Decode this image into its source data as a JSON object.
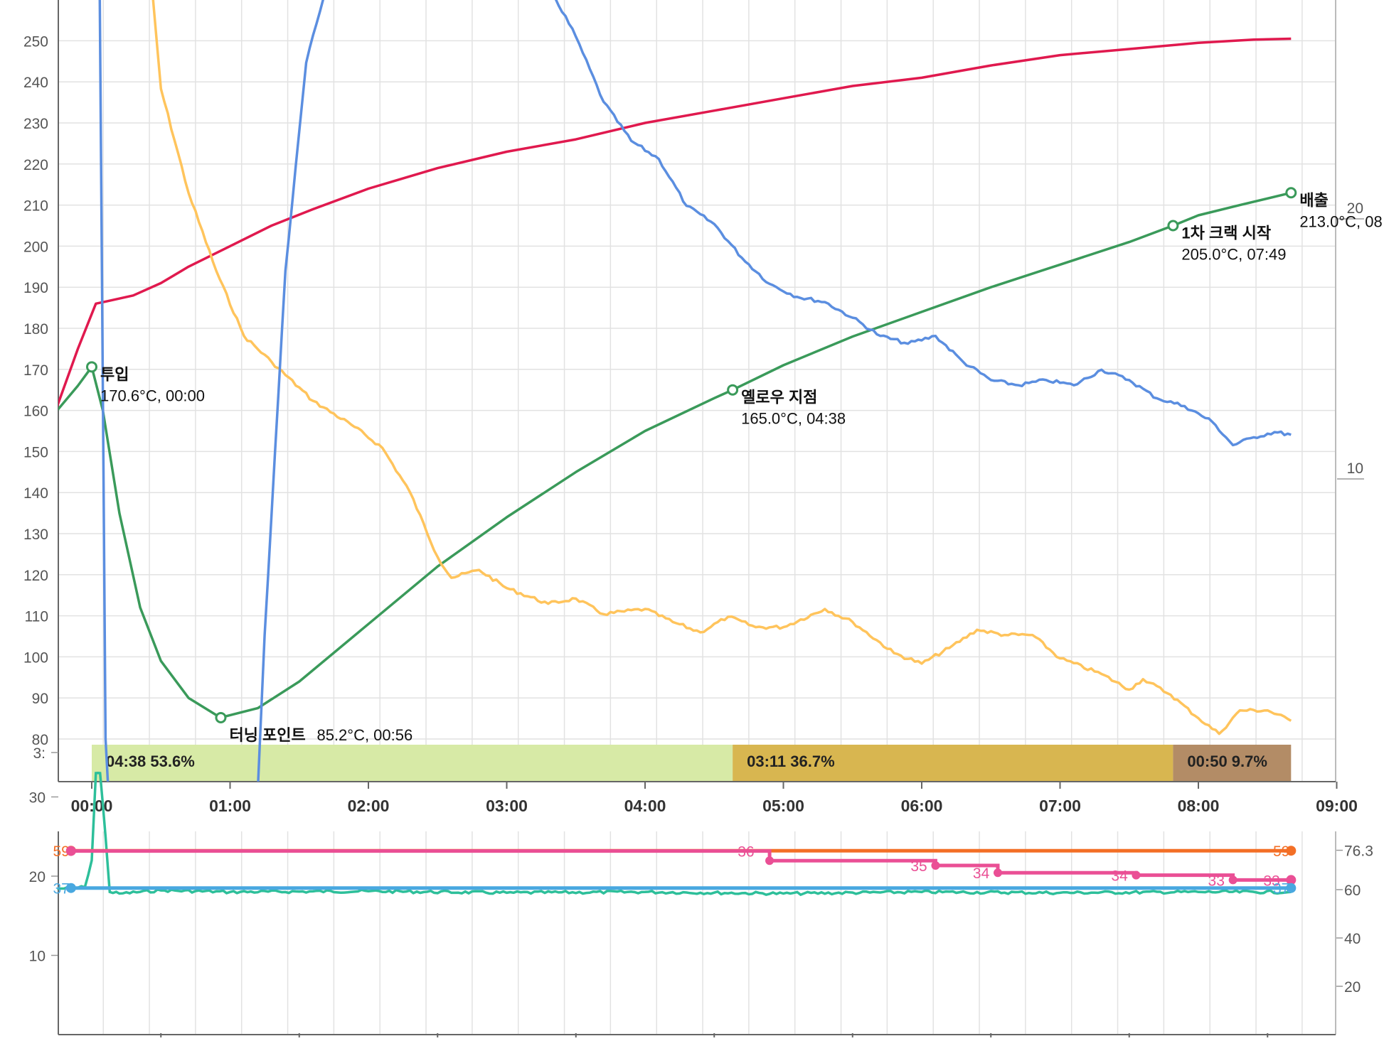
{
  "chart_data": [
    {
      "type": "line",
      "title": "",
      "xlabel": "",
      "ylabel": "",
      "x_ticks": [
        "00:00",
        "01:00",
        "02:00",
        "03:00",
        "04:00",
        "05:00",
        "06:00",
        "07:00",
        "08:00",
        "09:00"
      ],
      "xlim_min": [
        -0.25,
        9.0
      ],
      "y_ticks": [
        80,
        90,
        100,
        110,
        120,
        130,
        140,
        150,
        160,
        170,
        180,
        190,
        200,
        210,
        220,
        230,
        240,
        250
      ],
      "ylim": [
        70,
        260
      ],
      "y2_ticks": [
        {
          "label": "20",
          "value": 20
        },
        {
          "label": "10",
          "value": 10
        }
      ],
      "y2lim": [
        0,
        34
      ],
      "grid": true,
      "colors": {
        "bt": "#3a9a5a",
        "et": "#e0194e",
        "ror": "#5b8ee0",
        "et_ror": "#ffc45c"
      },
      "series": [
        {
          "key": "et",
          "axis": "left",
          "points": [
            [
              -0.25,
              161
            ],
            [
              -0.1,
              175
            ],
            [
              0.03,
              186
            ],
            [
              0.1,
              186.5
            ],
            [
              0.3,
              188
            ],
            [
              0.5,
              191
            ],
            [
              0.7,
              195
            ],
            [
              1.0,
              200
            ],
            [
              1.3,
              205
            ],
            [
              1.6,
              209
            ],
            [
              2.0,
              214
            ],
            [
              2.5,
              219
            ],
            [
              3.0,
              223
            ],
            [
              3.5,
              226
            ],
            [
              4.0,
              230
            ],
            [
              4.5,
              233
            ],
            [
              5.0,
              236
            ],
            [
              5.5,
              239
            ],
            [
              6.0,
              241
            ],
            [
              6.5,
              244
            ],
            [
              7.0,
              246.5
            ],
            [
              7.5,
              248
            ],
            [
              8.0,
              249.5
            ],
            [
              8.4,
              250.3
            ],
            [
              8.67,
              250.5
            ]
          ]
        },
        {
          "key": "bt",
          "axis": "left",
          "points": [
            [
              -0.25,
              160
            ],
            [
              -0.1,
              166
            ],
            [
              0.0,
              170.6
            ],
            [
              0.08,
              160
            ],
            [
              0.2,
              135
            ],
            [
              0.35,
              112
            ],
            [
              0.5,
              99
            ],
            [
              0.7,
              90
            ],
            [
              0.93,
              85.2
            ],
            [
              1.2,
              87.5
            ],
            [
              1.5,
              94
            ],
            [
              2.0,
              108
            ],
            [
              2.5,
              122
            ],
            [
              3.0,
              134
            ],
            [
              3.5,
              145
            ],
            [
              4.0,
              155
            ],
            [
              4.5,
              163
            ],
            [
              4.633,
              165
            ],
            [
              5.0,
              171
            ],
            [
              5.5,
              178
            ],
            [
              6.0,
              184
            ],
            [
              6.5,
              190
            ],
            [
              7.0,
              195.5
            ],
            [
              7.5,
              201
            ],
            [
              7.817,
              205
            ],
            [
              8.0,
              207.5
            ],
            [
              8.3,
              210
            ],
            [
              8.67,
              213.0
            ]
          ]
        },
        {
          "key": "et_ror",
          "axis": "right",
          "points": [
            [
              0.35,
              34
            ],
            [
              0.5,
              25
            ],
            [
              0.7,
              21
            ],
            [
              0.9,
              18
            ],
            [
              1.1,
              15.5
            ],
            [
              1.3,
              14.5
            ],
            [
              1.6,
              13
            ],
            [
              1.9,
              12
            ],
            [
              2.1,
              11.2
            ],
            [
              2.3,
              9.5
            ],
            [
              2.5,
              7
            ],
            [
              2.6,
              6.2
            ],
            [
              2.8,
              6.5
            ],
            [
              3.0,
              5.8
            ],
            [
              3.3,
              5.2
            ],
            [
              3.5,
              5.4
            ],
            [
              3.7,
              4.8
            ],
            [
              4.0,
              5
            ],
            [
              4.2,
              4.5
            ],
            [
              4.4,
              4.1
            ],
            [
              4.6,
              4.7
            ],
            [
              4.8,
              4.3
            ],
            [
              5.0,
              4.3
            ],
            [
              5.3,
              5.0
            ],
            [
              5.5,
              4.5
            ],
            [
              5.8,
              3.3
            ],
            [
              6.0,
              2.9
            ],
            [
              6.2,
              3.5
            ],
            [
              6.4,
              4.2
            ],
            [
              6.6,
              4.0
            ],
            [
              6.8,
              4.0
            ],
            [
              7.0,
              3.1
            ],
            [
              7.3,
              2.5
            ],
            [
              7.5,
              1.9
            ],
            [
              7.6,
              2.3
            ],
            [
              7.8,
              1.7
            ],
            [
              8.0,
              0.8
            ],
            [
              8.15,
              0.2
            ],
            [
              8.3,
              1.1
            ],
            [
              8.5,
              1.1
            ],
            [
              8.67,
              0.7
            ]
          ]
        },
        {
          "key": "ror",
          "axis": "right",
          "points": [
            [
              0.05,
              34
            ],
            [
              0.1,
              0
            ],
            [
              0.12,
              -2
            ],
            [
              1.2,
              -2
            ],
            [
              1.25,
              4
            ],
            [
              1.4,
              18
            ],
            [
              1.55,
              26
            ],
            [
              1.7,
              29
            ],
            [
              1.85,
              31
            ],
            [
              2.0,
              33
            ],
            [
              2.15,
              34.4
            ],
            [
              2.3,
              33.6
            ],
            [
              2.5,
              33.4
            ],
            [
              2.7,
              32
            ],
            [
              2.9,
              30.8
            ],
            [
              3.1,
              30
            ],
            [
              3.3,
              29
            ],
            [
              3.5,
              27
            ],
            [
              3.7,
              24.5
            ],
            [
              3.9,
              23
            ],
            [
              4.1,
              22.3
            ],
            [
              4.3,
              20.5
            ],
            [
              4.5,
              19.8
            ],
            [
              4.7,
              18.5
            ],
            [
              4.9,
              17.5
            ],
            [
              5.1,
              17
            ],
            [
              5.3,
              16.8
            ],
            [
              5.5,
              16.2
            ],
            [
              5.7,
              15.5
            ],
            [
              5.9,
              15.2
            ],
            [
              6.1,
              15.5
            ],
            [
              6.3,
              14.5
            ],
            [
              6.5,
              13.8
            ],
            [
              6.7,
              13.6
            ],
            [
              6.9,
              13.8
            ],
            [
              7.1,
              13.6
            ],
            [
              7.3,
              14.2
            ],
            [
              7.5,
              13.8
            ],
            [
              7.7,
              13.1
            ],
            [
              7.9,
              12.8
            ],
            [
              8.1,
              12.2
            ],
            [
              8.25,
              11.3
            ],
            [
              8.4,
              11.6
            ],
            [
              8.55,
              11.8
            ],
            [
              8.67,
              11.7
            ]
          ]
        }
      ],
      "annotations": [
        {
          "x": 0.0,
          "y": 170.6,
          "title": "투입",
          "sub": "170.6°C, 00:00"
        },
        {
          "x": 0.933,
          "y": 85.2,
          "title": "터닝 포인트",
          "sub": "85.2°C, 00:56"
        },
        {
          "x": 4.633,
          "y": 165.0,
          "title": "옐로우 지점",
          "sub": "165.0°C, 04:38"
        },
        {
          "x": 7.817,
          "y": 205.0,
          "title": "1차 크랙 시작",
          "sub": "205.0°C, 07:49"
        },
        {
          "x": 8.67,
          "y": 213.0,
          "title": "배출",
          "sub": "213.0°C, 08"
        }
      ],
      "phases": [
        {
          "start": 0.0,
          "end": 4.633,
          "time": "04:38",
          "pct": "53.6%",
          "color": "#d7eaa6"
        },
        {
          "start": 4.633,
          "end": 7.817,
          "time": "03:11",
          "pct": "36.7%",
          "color": "#d8b650"
        },
        {
          "start": 7.817,
          "end": 8.67,
          "time": "00:50",
          "pct": "9.7%",
          "color": "#b38c66"
        }
      ]
    },
    {
      "type": "line",
      "title": "",
      "xlabel": "",
      "ylabel": "",
      "ylim": [
        0,
        38
      ],
      "y_ticks": [
        {
          "label": "10",
          "value": 10
        },
        {
          "label": "20",
          "value": 20
        },
        {
          "label": "30",
          "value": 30
        },
        {
          "label": "3:",
          "value": 35.6
        }
      ],
      "y2lim": [
        0,
        90
      ],
      "y2_ticks": [
        {
          "label": "20",
          "value": 20
        },
        {
          "label": "40",
          "value": 40
        },
        {
          "label": "60",
          "value": 60
        },
        {
          "label": "76.3",
          "value": 76.3
        }
      ],
      "grid": true,
      "colors": {
        "orange": "#f36f26",
        "pink": "#ea4f95",
        "teal": "#2dbf9a",
        "blue": "#49a8e0"
      },
      "steps": {
        "orange": {
          "points": [
            [
              -0.15,
              59
            ],
            [
              8.67,
              59
            ]
          ],
          "labels": [
            {
              "x": -0.15,
              "text": "59"
            },
            {
              "x": 8.67,
              "text": "59"
            }
          ]
        },
        "pink": {
          "points": [
            [
              -0.15,
              76
            ],
            [
              4.9,
              76
            ],
            [
              4.9,
              72
            ],
            [
              6.1,
              72
            ],
            [
              6.1,
              70
            ],
            [
              6.55,
              70
            ],
            [
              6.55,
              67
            ],
            [
              7.55,
              67
            ],
            [
              7.55,
              66
            ],
            [
              8.25,
              66
            ],
            [
              8.25,
              64
            ],
            [
              8.67,
              64
            ]
          ],
          "labels": [
            {
              "x": 4.8,
              "text": "36"
            },
            {
              "x": 6.05,
              "text": "35"
            },
            {
              "x": 6.5,
              "text": "34"
            },
            {
              "x": 7.5,
              "text": "34"
            },
            {
              "x": 8.2,
              "text": "33"
            },
            {
              "x": 8.6,
              "text": "33"
            }
          ]
        },
        "blue": {
          "points": [
            [
              -0.15,
              37
            ],
            [
              8.67,
              37
            ]
          ],
          "labels": [
            {
              "x": -0.15,
              "text": "37"
            },
            {
              "x": 8.67,
              "text": "37"
            }
          ]
        }
      },
      "teal": {
        "points": [
          [
            -0.25,
            18.4
          ],
          [
            -0.05,
            18.6
          ],
          [
            0.0,
            22
          ],
          [
            0.03,
            33
          ],
          [
            0.06,
            33
          ],
          [
            0.1,
            25
          ],
          [
            0.13,
            18
          ],
          [
            0.2,
            17.8
          ],
          [
            0.5,
            18.2
          ],
          [
            1.0,
            18.0
          ],
          [
            2.0,
            18.1
          ],
          [
            3.0,
            17.9
          ],
          [
            4.0,
            18.0
          ],
          [
            5.0,
            17.8
          ],
          [
            6.0,
            18.0
          ],
          [
            7.0,
            17.9
          ],
          [
            8.0,
            18.0
          ],
          [
            8.67,
            18.0
          ]
        ]
      }
    }
  ]
}
